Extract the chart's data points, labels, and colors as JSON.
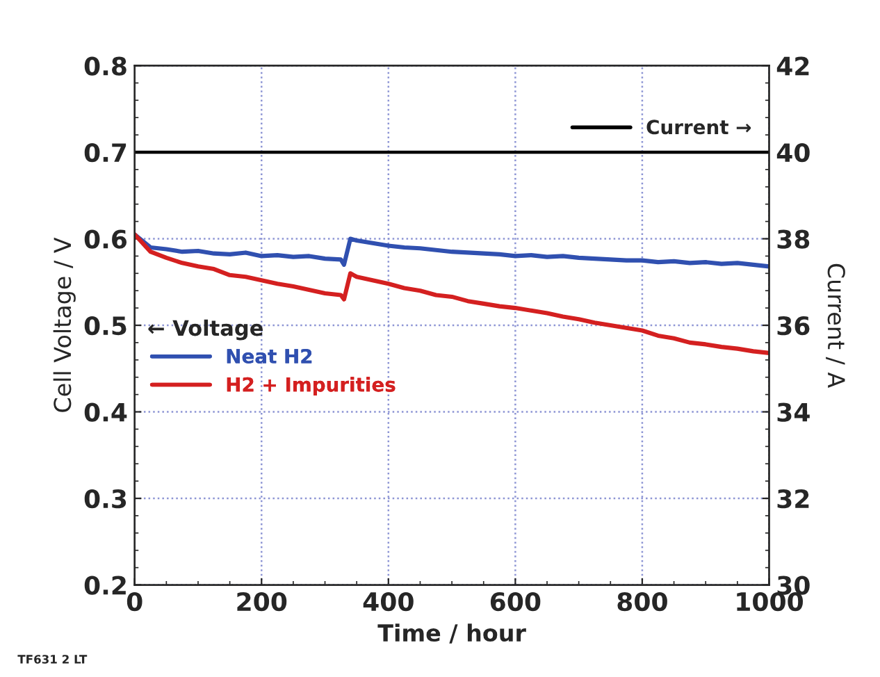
{
  "chart_data": {
    "type": "line",
    "xlabel": "Time / hour",
    "ylabel": "Cell Voltage / V",
    "y2label": "Current / A",
    "xlim": [
      0,
      1000
    ],
    "xticks": [
      0,
      200,
      400,
      600,
      800,
      1000
    ],
    "ylim": [
      0.2,
      0.8
    ],
    "yticks": [
      0.2,
      0.3,
      0.4,
      0.5,
      0.6,
      0.7,
      0.8
    ],
    "y2lim": [
      30,
      42
    ],
    "y2ticks": [
      30,
      32,
      34,
      36,
      38,
      40,
      42
    ],
    "grid": true,
    "legend": "center left",
    "line_style": "solid",
    "annotations": [
      "← Voltage",
      "TF631 2 LT"
    ],
    "series": [
      {
        "name": "Neat H2",
        "color": "#3050b0",
        "x": [
          0,
          25,
          50,
          75,
          100,
          125,
          150,
          175,
          200,
          225,
          250,
          275,
          300,
          325,
          330,
          340,
          350,
          375,
          400,
          425,
          450,
          475,
          500,
          525,
          550,
          575,
          600,
          625,
          650,
          675,
          700,
          725,
          750,
          775,
          800,
          825,
          850,
          875,
          900,
          925,
          950,
          975,
          1000
        ],
        "values": [
          0.605,
          0.59,
          0.588,
          0.585,
          0.586,
          0.583,
          0.582,
          0.584,
          0.58,
          0.581,
          0.579,
          0.58,
          0.577,
          0.576,
          0.57,
          0.6,
          0.598,
          0.595,
          0.592,
          0.59,
          0.589,
          0.587,
          0.585,
          0.584,
          0.583,
          0.582,
          0.58,
          0.581,
          0.579,
          0.58,
          0.578,
          0.577,
          0.576,
          0.575,
          0.575,
          0.573,
          0.574,
          0.572,
          0.573,
          0.571,
          0.572,
          0.57,
          0.568
        ]
      },
      {
        "name": "H2 + Impurities",
        "color": "#d42020",
        "x": [
          0,
          25,
          50,
          75,
          100,
          125,
          150,
          175,
          200,
          225,
          250,
          275,
          300,
          325,
          330,
          340,
          350,
          375,
          400,
          425,
          450,
          475,
          500,
          525,
          550,
          575,
          600,
          625,
          650,
          675,
          700,
          725,
          750,
          775,
          800,
          825,
          850,
          875,
          900,
          925,
          950,
          975,
          1000
        ],
        "values": [
          0.605,
          0.585,
          0.578,
          0.572,
          0.568,
          0.565,
          0.558,
          0.556,
          0.552,
          0.548,
          0.545,
          0.541,
          0.537,
          0.535,
          0.53,
          0.56,
          0.556,
          0.552,
          0.548,
          0.543,
          0.54,
          0.535,
          0.533,
          0.528,
          0.525,
          0.522,
          0.52,
          0.517,
          0.514,
          0.51,
          0.507,
          0.503,
          0.5,
          0.497,
          0.494,
          0.488,
          0.485,
          0.48,
          0.478,
          0.475,
          0.473,
          0.47,
          0.468
        ]
      },
      {
        "name": "Current →",
        "color": "#000000",
        "axis": "y2",
        "x": [
          0,
          1000
        ],
        "values": [
          40,
          40
        ]
      }
    ]
  }
}
